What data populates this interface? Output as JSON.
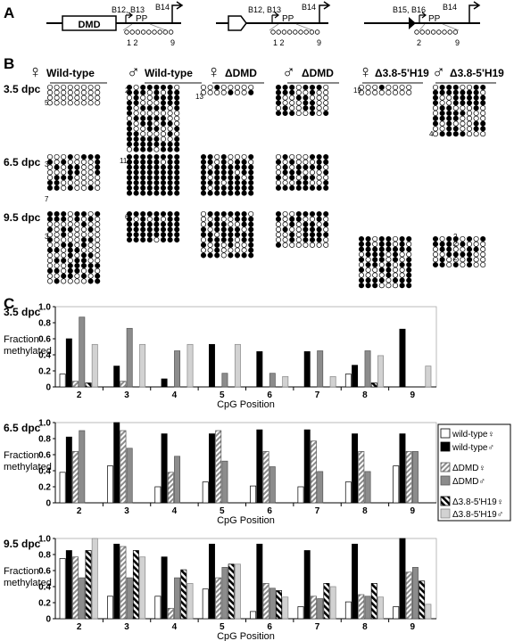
{
  "panel_labels": {
    "a": "A",
    "b": "B",
    "c": "C"
  },
  "panel_a": {
    "constructs": [
      {
        "box_label": "DMD",
        "site_label_1": "B12, B13",
        "site_label_2": "B14",
        "pp_label": "PP",
        "cpg_start": "1 2",
        "cpg_end": "9"
      },
      {
        "box_label": "",
        "site_label_1": "B12, B13",
        "site_label_2": "B14",
        "pp_label": "PP",
        "cpg_start": "1 2",
        "cpg_end": "9"
      },
      {
        "box_label": "",
        "site_label_1": "B15, B16",
        "site_label_2": "B14",
        "pp_label": "PP",
        "cpg_start": "2",
        "cpg_end": "9"
      }
    ]
  },
  "panel_b": {
    "column_headers": [
      {
        "symbol": "♀",
        "label": "Wild-type"
      },
      {
        "symbol": "♂",
        "label": "Wild-type"
      },
      {
        "symbol": "♀",
        "label": "ΔDMD"
      },
      {
        "symbol": "♂",
        "label": "ΔDMD"
      },
      {
        "symbol": "♀",
        "label": "Δ3.8-5'H19"
      },
      {
        "symbol": "♂",
        "label": "Δ3.8-5'H19"
      }
    ],
    "row_labels": [
      "3.5 dpc",
      "6.5 dpc",
      "9.5 dpc"
    ],
    "count_labels": [
      "5",
      "2",
      "13",
      "19",
      "4",
      "3",
      "7",
      "11",
      "3",
      "6",
      "2",
      "2",
      "2"
    ],
    "colors": {
      "methylated": "#000000",
      "unmethylated": "#ffffff"
    }
  },
  "chart_data": [
    {
      "type": "bar",
      "title": "3.5 dpc",
      "ylabel": "Fraction methylated",
      "xlabel": "CpG Position",
      "ylim": [
        0,
        1.0
      ],
      "yticks": [
        "0",
        "0.2",
        "0.4",
        "0.6",
        "0.8",
        "1.0"
      ],
      "categories": [
        "2",
        "3",
        "4",
        "5",
        "6",
        "7",
        "8",
        "9"
      ],
      "series": [
        {
          "name": "wild-type♀",
          "values": [
            0.16,
            0.0,
            0.0,
            0.0,
            0.0,
            0.0,
            0.16,
            0.0
          ]
        },
        {
          "name": "wild-type♂",
          "values": [
            0.6,
            0.26,
            0.1,
            0.53,
            0.44,
            0.44,
            0.27,
            0.72
          ]
        },
        {
          "name": "ΔDMD♀",
          "values": [
            0.07,
            0.07,
            0.0,
            0.0,
            0.0,
            0.0,
            0.0,
            0.0
          ]
        },
        {
          "name": "ΔDMD♂",
          "values": [
            0.87,
            0.73,
            0.45,
            0.17,
            0.17,
            0.45,
            0.45,
            0.0
          ]
        },
        {
          "name": "Δ3.8-5'H19♀",
          "values": [
            0.05,
            0.0,
            0.0,
            0.0,
            0.0,
            0.0,
            0.05,
            0.0
          ]
        },
        {
          "name": "Δ3.8-5'H19♂",
          "values": [
            0.53,
            0.53,
            0.53,
            0.53,
            0.13,
            0.13,
            0.39,
            0.26
          ]
        }
      ]
    },
    {
      "type": "bar",
      "title": "6.5 dpc",
      "ylabel": "Fraction methylated",
      "xlabel": "CpG Position",
      "ylim": [
        0,
        1.0
      ],
      "yticks": [
        "0",
        "0.2",
        "0.4",
        "0.6",
        "0.8",
        "1.0"
      ],
      "categories": [
        "2",
        "3",
        "4",
        "5",
        "6",
        "7",
        "8",
        "9"
      ],
      "series": [
        {
          "name": "wild-type♀",
          "values": [
            0.38,
            0.46,
            0.2,
            0.26,
            0.21,
            0.2,
            0.26,
            0.46
          ]
        },
        {
          "name": "wild-type♂",
          "values": [
            0.82,
            1.0,
            0.86,
            0.86,
            0.91,
            0.91,
            0.86,
            0.86
          ]
        },
        {
          "name": "ΔDMD♀",
          "values": [
            0.64,
            0.9,
            0.38,
            0.9,
            0.64,
            0.77,
            0.64,
            0.64
          ]
        },
        {
          "name": "ΔDMD♂",
          "values": [
            0.9,
            0.68,
            0.58,
            0.52,
            0.45,
            0.39,
            0.39,
            0.64
          ]
        }
      ]
    },
    {
      "type": "bar",
      "title": "9.5 dpc",
      "ylabel": "Fraction methylated",
      "xlabel": "CpG Position",
      "ylim": [
        0,
        1.0
      ],
      "yticks": [
        "0",
        "0.2",
        "0.4",
        "0.6",
        "0.8",
        "1.0"
      ],
      "categories": [
        "2",
        "3",
        "4",
        "5",
        "6",
        "7",
        "8",
        "9"
      ],
      "series": [
        {
          "name": "wild-type♀",
          "values": [
            0.75,
            0.28,
            0.28,
            0.37,
            0.09,
            0.15,
            0.21,
            0.15
          ]
        },
        {
          "name": "wild-type♂",
          "values": [
            0.85,
            0.93,
            0.77,
            0.93,
            0.93,
            0.85,
            0.93,
            1.0
          ]
        },
        {
          "name": "ΔDMD♀",
          "values": [
            0.77,
            0.9,
            0.13,
            0.51,
            0.44,
            0.28,
            0.3,
            0.58
          ]
        },
        {
          "name": "ΔDMD♂",
          "values": [
            0.51,
            0.51,
            0.51,
            0.64,
            0.38,
            0.25,
            0.28,
            0.64
          ]
        },
        {
          "name": "Δ3.8-5'H19♀",
          "values": [
            0.85,
            0.85,
            0.61,
            0.68,
            0.35,
            0.44,
            0.44,
            0.47
          ]
        },
        {
          "name": "Δ3.8-5'H19♂",
          "values": [
            1.0,
            0.77,
            0.44,
            0.68,
            0.27,
            0.4,
            0.27,
            0.18
          ]
        }
      ]
    }
  ],
  "legend": {
    "entries": [
      {
        "label": "wild-type♀",
        "style": "white"
      },
      {
        "label": "wild-type♂",
        "style": "black"
      },
      {
        "label": "ΔDMD♀",
        "style": "diag"
      },
      {
        "label": "ΔDMD♂",
        "style": "gray"
      },
      {
        "label": "Δ3.8-5'H19♀",
        "style": "bigdiag"
      },
      {
        "label": "Δ3.8-5'H19♂",
        "style": "light"
      }
    ],
    "colors": {
      "white": "#ffffff",
      "black": "#000000",
      "gray": "#8c8c8c",
      "light": "#d2d2d2",
      "stripe": "#8c8c8c"
    }
  }
}
